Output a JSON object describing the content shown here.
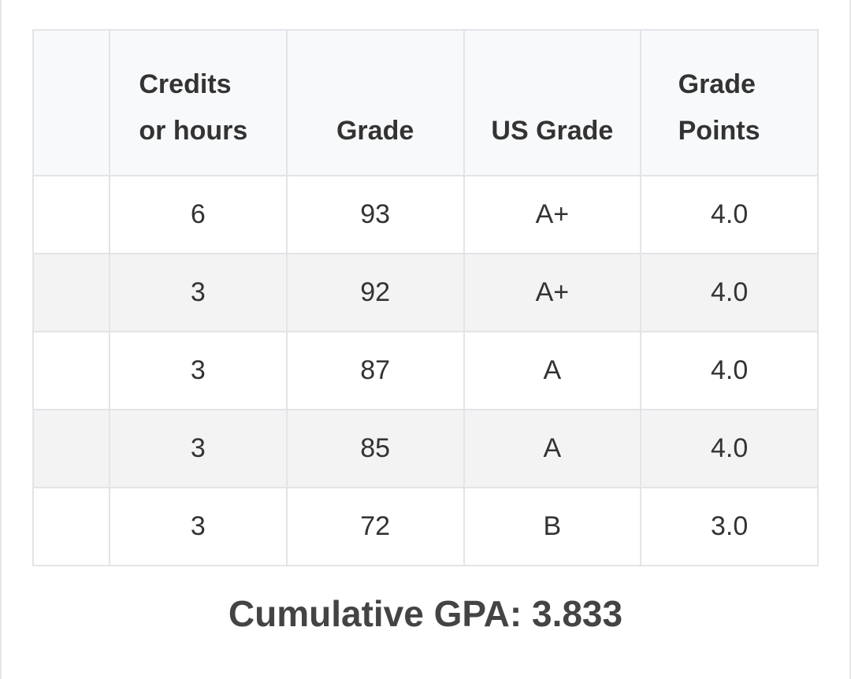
{
  "table": {
    "header": [
      "Credits or hours",
      "Grade",
      "US Grade",
      "Grade Points"
    ],
    "rows": [
      [
        "6",
        "93",
        "A+",
        "4.0"
      ],
      [
        "3",
        "92",
        "A+",
        "4.0"
      ],
      [
        "3",
        "87",
        "A",
        "4.0"
      ],
      [
        "3",
        "85",
        "A",
        "4.0"
      ],
      [
        "3",
        "72",
        "B",
        "3.0"
      ]
    ]
  },
  "summary": "Cumulative GPA: 3.833"
}
